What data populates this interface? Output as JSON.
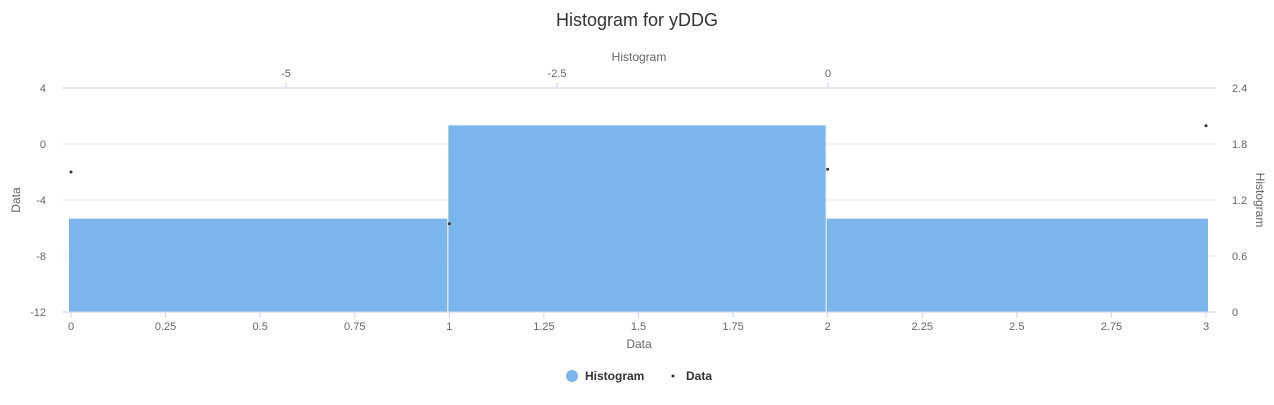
{
  "chart_data": {
    "type": "bar",
    "title": "Histogram for yDDG",
    "x_bottom": {
      "label": "Data",
      "range": [
        0,
        3
      ],
      "ticks": [
        0,
        0.25,
        0.5,
        0.75,
        1,
        1.25,
        1.5,
        1.75,
        2,
        2.25,
        2.5,
        2.75,
        3
      ],
      "tick_labels": [
        "0",
        "0.25",
        "0.5",
        "0.75",
        "1",
        "1.25",
        "1.5",
        "1.75",
        "2",
        "2.25",
        "2.5",
        "2.75",
        "3"
      ]
    },
    "x_top": {
      "label": "Histogram",
      "ticks": [
        -5,
        -2.5,
        0
      ],
      "tick_labels": [
        "-5",
        "-2.5",
        "0"
      ]
    },
    "y_left": {
      "label": "Data",
      "range": [
        -12,
        4
      ],
      "ticks": [
        4,
        0,
        -4,
        -8,
        -12
      ],
      "tick_labels": [
        "4",
        "0",
        "-4",
        "-8",
        "-12"
      ]
    },
    "y_right": {
      "label": "Histogram",
      "range": [
        0,
        2.4
      ],
      "ticks": [
        2.4,
        1.8,
        1.2,
        0.6,
        0
      ],
      "tick_labels": [
        "2.4",
        "1.8",
        "1.2",
        "0.6",
        "0"
      ]
    },
    "series": [
      {
        "name": "Histogram",
        "type": "bar",
        "color": "#7cb5ec",
        "bins": [
          {
            "from": 0,
            "to": 1,
            "value": 1
          },
          {
            "from": 1,
            "to": 2,
            "value": 2
          },
          {
            "from": 2,
            "to": 3,
            "value": 1
          }
        ]
      },
      {
        "name": "Data",
        "type": "scatter",
        "color": "#333333",
        "points": [
          {
            "x": 0,
            "y": -2
          },
          {
            "x": 1,
            "y": -5.7
          },
          {
            "x": 2,
            "y": -1.8
          },
          {
            "x": 3,
            "y": 1.3
          }
        ]
      }
    ],
    "legend_position": "bottom-center",
    "grid": true
  }
}
